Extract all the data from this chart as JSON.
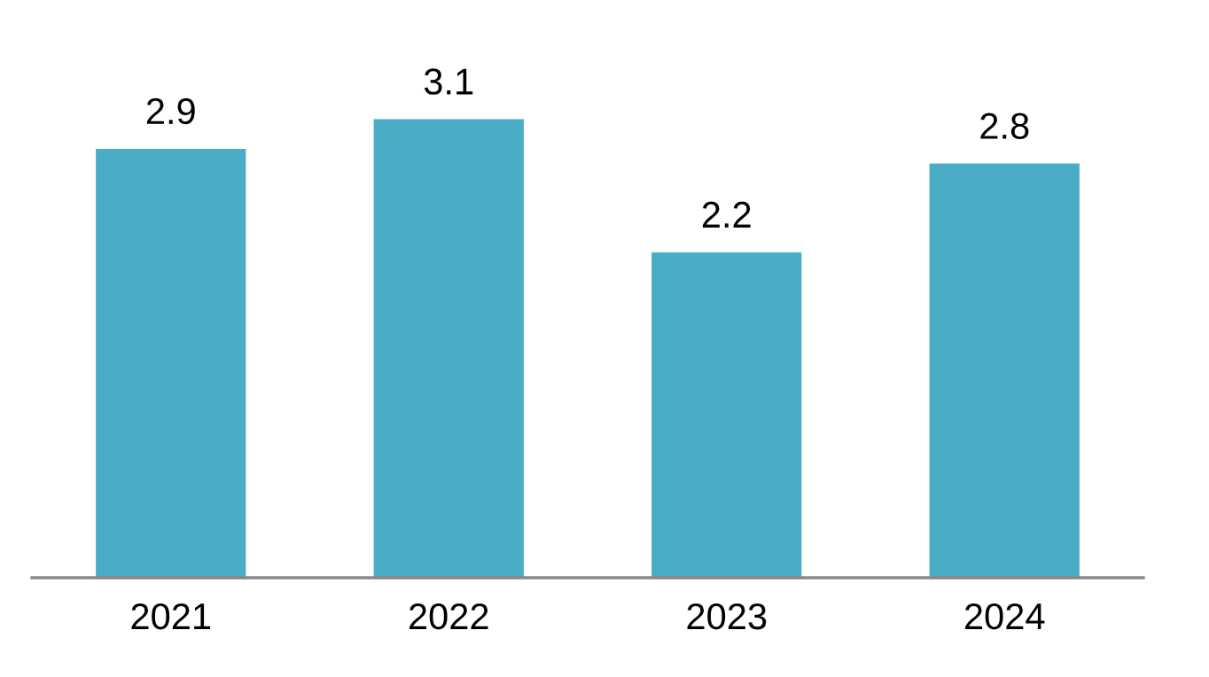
{
  "chart_data": {
    "type": "bar",
    "categories": [
      "2021",
      "2022",
      "2023",
      "2024"
    ],
    "values": [
      2.9,
      3.1,
      2.2,
      2.8
    ],
    "color": "#4bacc6",
    "data_labels": true,
    "tick_labels": "x",
    "grid": false,
    "legend": false
  }
}
